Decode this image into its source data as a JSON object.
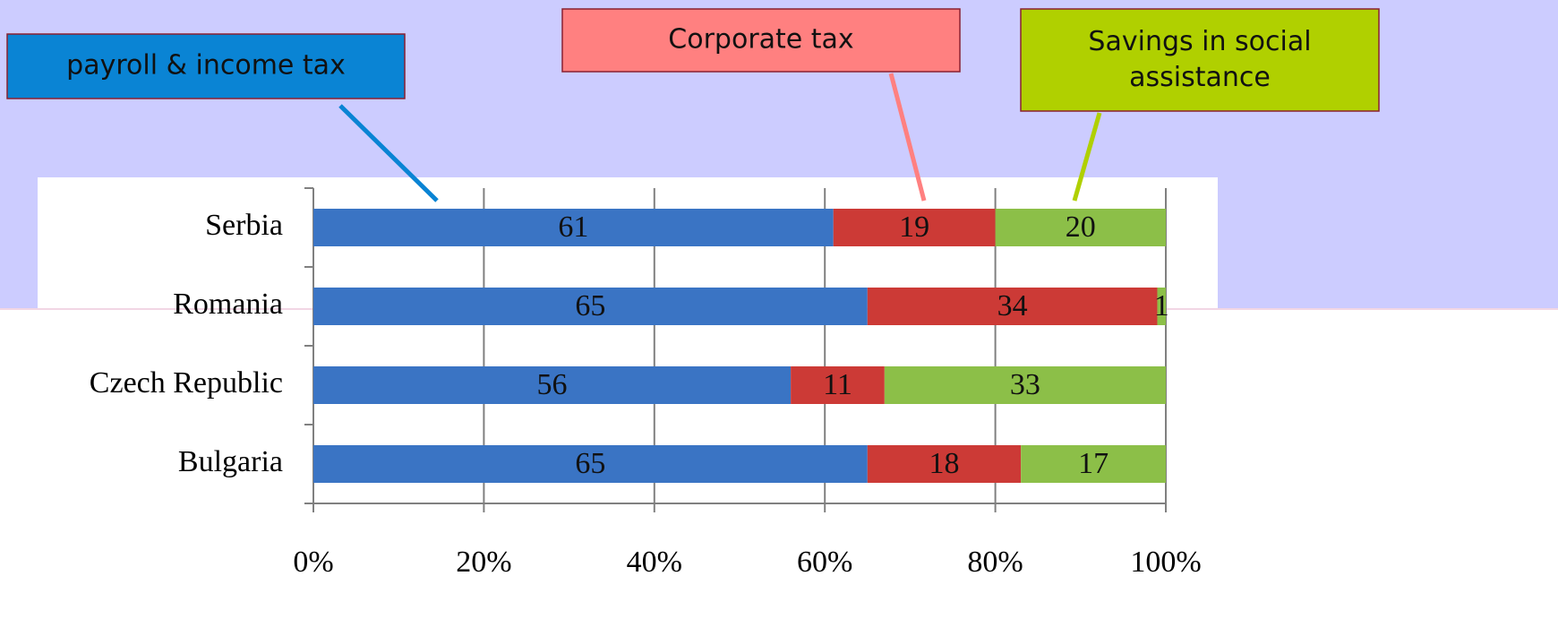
{
  "chart_data": {
    "type": "stacked_bar_horizontal",
    "categories": [
      "Serbia",
      "Romania",
      "Czech Republic",
      "Bulgaria"
    ],
    "series": [
      {
        "name": "payroll & income tax",
        "color": "#3a74c4",
        "values": [
          61,
          65,
          56,
          65
        ]
      },
      {
        "name": "Corporate tax",
        "color": "#cc3a36",
        "values": [
          19,
          34,
          11,
          18
        ]
      },
      {
        "name": "Savings in social assistance",
        "color": "#8cbf48",
        "values": [
          20,
          1,
          33,
          17
        ]
      }
    ],
    "xlim": [
      0,
      100
    ],
    "xticks": [
      {
        "value": 0,
        "label": "0%"
      },
      {
        "value": 20,
        "label": "20%"
      },
      {
        "value": 40,
        "label": "40%"
      },
      {
        "value": 60,
        "label": "60%"
      },
      {
        "value": 80,
        "label": "80%"
      },
      {
        "value": 100,
        "label": "100%"
      }
    ],
    "grid": true,
    "legend_colors": [
      "#0a84d4",
      "#ff8080",
      "#b0d000"
    ]
  }
}
